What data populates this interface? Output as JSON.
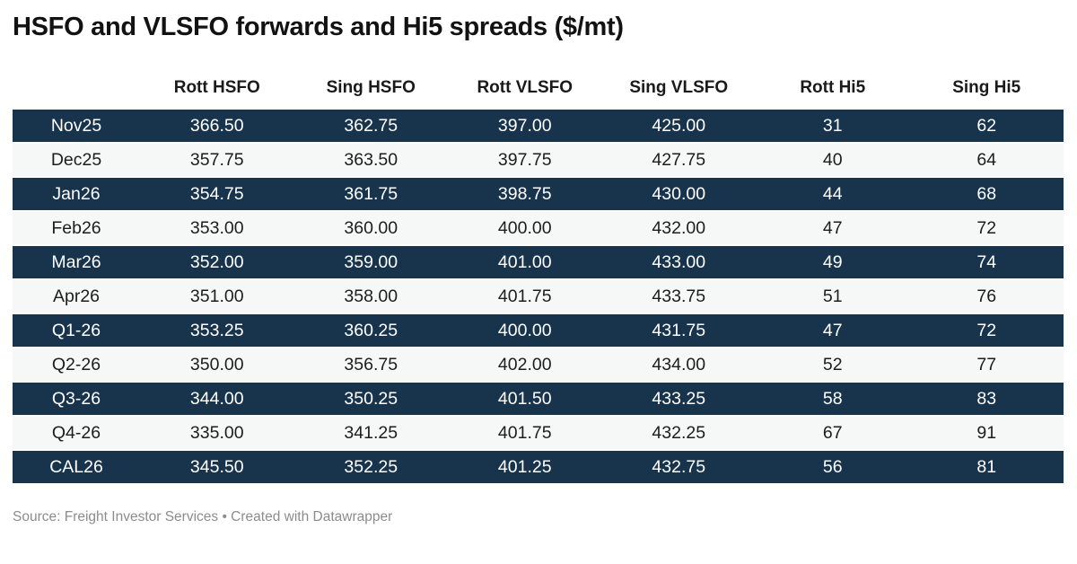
{
  "title": "HSFO and VLSFO forwards and Hi5 spreads ($/mt)",
  "chart_data": {
    "type": "table",
    "title": "HSFO and VLSFO forwards and Hi5 spreads ($/mt)",
    "columns": [
      "",
      "Rott HSFO",
      "Sing HSFO",
      "Rott VLSFO",
      "Sing VLSFO",
      "Rott Hi5",
      "Sing Hi5"
    ],
    "rows": [
      {
        "label": "Nov25",
        "values": [
          "366.50",
          "362.75",
          "397.00",
          "425.00",
          "31",
          "62"
        ]
      },
      {
        "label": "Dec25",
        "values": [
          "357.75",
          "363.50",
          "397.75",
          "427.75",
          "40",
          "64"
        ]
      },
      {
        "label": "Jan26",
        "values": [
          "354.75",
          "361.75",
          "398.75",
          "430.00",
          "44",
          "68"
        ]
      },
      {
        "label": "Feb26",
        "values": [
          "353.00",
          "360.00",
          "400.00",
          "432.00",
          "47",
          "72"
        ]
      },
      {
        "label": "Mar26",
        "values": [
          "352.00",
          "359.00",
          "401.00",
          "433.00",
          "49",
          "74"
        ]
      },
      {
        "label": "Apr26",
        "values": [
          "351.00",
          "358.00",
          "401.75",
          "433.75",
          "51",
          "76"
        ]
      },
      {
        "label": "Q1-26",
        "values": [
          "353.25",
          "360.25",
          "400.00",
          "431.75",
          "47",
          "72"
        ]
      },
      {
        "label": "Q2-26",
        "values": [
          "350.00",
          "356.75",
          "402.00",
          "434.00",
          "52",
          "77"
        ]
      },
      {
        "label": "Q3-26",
        "values": [
          "344.00",
          "350.25",
          "401.50",
          "433.25",
          "58",
          "83"
        ]
      },
      {
        "label": "Q4-26",
        "values": [
          "335.00",
          "341.25",
          "401.75",
          "432.25",
          "67",
          "91"
        ]
      },
      {
        "label": "CAL26",
        "values": [
          "345.50",
          "352.25",
          "401.25",
          "432.75",
          "56",
          "81"
        ]
      }
    ],
    "layout_hints": {
      "row_striping": "alternating dark/light starting dark",
      "alignment": "center",
      "grid": "off"
    }
  },
  "footer": {
    "source": "Source: Freight Investor Services • Created with Datawrapper"
  },
  "colors": {
    "row_dark_bg": "#17344c",
    "row_dark_text": "#ffffff",
    "row_light_bg": "#f6f7f7",
    "text_dark": "#1d1d1d",
    "title_color": "#121212",
    "footer_color": "#8c8c8c",
    "page_bg": "#ffffff"
  }
}
